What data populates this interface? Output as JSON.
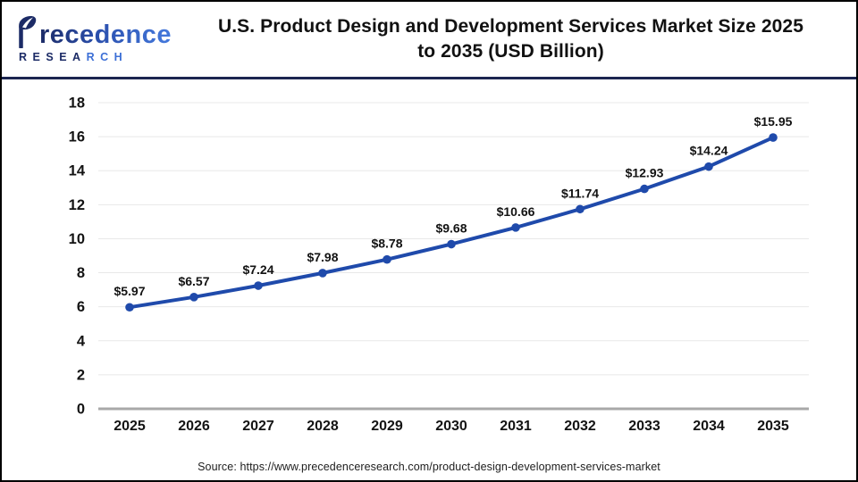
{
  "logo": {
    "brand": "Precedence",
    "brand_rest": "recedence",
    "sub_left": "RESEA",
    "sub_right": "RCH"
  },
  "header": {
    "title_line1": "U.S. Product Design and Development Services Market Size 2025",
    "title_line2": "to 2035 (USD Billion)"
  },
  "footer": {
    "source": "Source: https://www.precedenceresearch.com/product-design-development-services-market"
  },
  "colors": {
    "line": "#1f4aab",
    "marker": "#1f4aab",
    "grid": "#e8e8e8",
    "axis": "#a8a8a8",
    "text": "#131313",
    "header_divider": "#1b2550",
    "logo_navy": "#1c2b66",
    "logo_blue": "#3c6fd6"
  },
  "chart_data": {
    "type": "line",
    "title": "U.S. Product Design and Development Services Market Size 2025 to 2035 (USD Billion)",
    "xlabel": "",
    "ylabel": "",
    "categories": [
      "2025",
      "2026",
      "2027",
      "2028",
      "2029",
      "2030",
      "2031",
      "2032",
      "2033",
      "2034",
      "2035"
    ],
    "values": [
      5.97,
      6.57,
      7.24,
      7.98,
      8.78,
      9.68,
      10.66,
      11.74,
      12.93,
      14.24,
      15.95
    ],
    "point_labels": [
      "$5.97",
      "$6.57",
      "$7.24",
      "$7.98",
      "$8.78",
      "$9.68",
      "$10.66",
      "$11.74",
      "$12.93",
      "$14.24",
      "$15.95"
    ],
    "yticks": [
      0,
      2,
      4,
      6,
      8,
      10,
      12,
      14,
      16,
      18
    ],
    "ylim": [
      0,
      18
    ],
    "grid": true,
    "legend": false,
    "marker": "circle"
  }
}
